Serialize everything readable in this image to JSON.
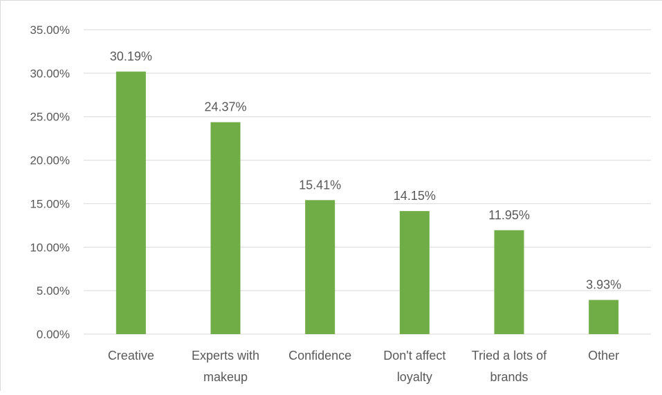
{
  "chart_data": {
    "type": "bar",
    "title": "",
    "xlabel": "",
    "ylabel": "",
    "categories": [
      [
        "Creative"
      ],
      [
        "Experts with",
        "makeup"
      ],
      [
        "Confidence"
      ],
      [
        "Don't affect",
        "loyalty"
      ],
      [
        "Tried a lots of",
        "brands"
      ],
      [
        "Other"
      ]
    ],
    "values": [
      30.19,
      24.37,
      15.41,
      14.15,
      11.95,
      3.93
    ],
    "data_labels": [
      "30.19%",
      "24.37%",
      "15.41%",
      "14.15%",
      "11.95%",
      "3.93%"
    ],
    "ylim": [
      0,
      35
    ],
    "yticks": [
      0,
      5,
      10,
      15,
      20,
      25,
      30,
      35
    ],
    "ytick_labels": [
      "0.00%",
      "5.00%",
      "10.00%",
      "15.00%",
      "20.00%",
      "25.00%",
      "30.00%",
      "35.00%"
    ],
    "grid": true,
    "legend": "none",
    "colors": {
      "bar": "#70ad47",
      "grid": "#d9d9d9",
      "text": "#595959"
    }
  }
}
